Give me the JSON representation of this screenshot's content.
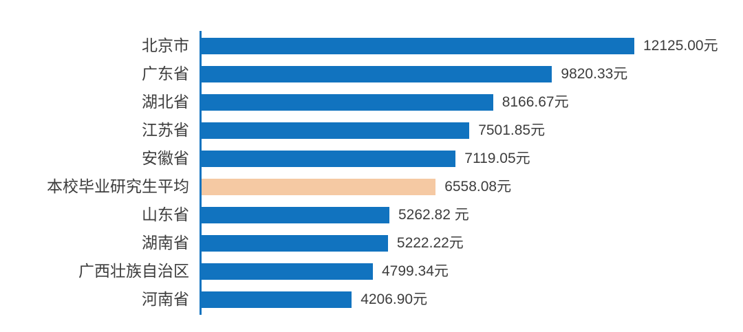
{
  "chart_data": {
    "type": "bar",
    "orientation": "horizontal",
    "title": "",
    "xlabel": "",
    "ylabel": "",
    "grid": false,
    "legend": false,
    "unit": "元",
    "xlim": [
      0,
      12125
    ],
    "categories": [
      "北京市",
      "广东省",
      "湖北省",
      "江苏省",
      "安徽省",
      "本校毕业研究生平均",
      "山东省",
      "湖南省",
      "广西壮族自治区",
      "河南省"
    ],
    "values": [
      12125.0,
      9820.33,
      8166.67,
      7501.85,
      7119.05,
      6558.08,
      5262.82,
      5222.22,
      4799.34,
      4206.9
    ],
    "value_labels": [
      "12125.00元",
      "9820.33元",
      "8166.67元",
      "7501.85元",
      "7119.05元",
      "6558.08元",
      "5262.82 元",
      "5222.22元",
      "4799.34元",
      "4206.90元"
    ],
    "highlight_index": 5,
    "colors": {
      "bar": "#1173BF",
      "highlight": "#F5C9A3",
      "axis": "#1173BF",
      "text": "#3D3D3D"
    }
  },
  "layout_note": ""
}
